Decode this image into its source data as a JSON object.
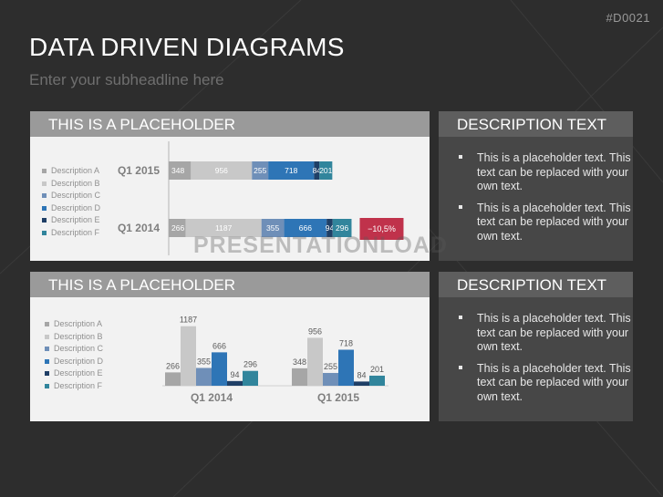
{
  "header": {
    "code": "#D0021",
    "title": "DATA DRIVEN DIAGRAMS",
    "subtitle": "Enter your subheadline here"
  },
  "watermark": "PRESENTATIONLOAD",
  "colors": {
    "series": [
      "#a6a6a6",
      "#c8c8c8",
      "#6f8fb8",
      "#2e75b6",
      "#1f3f66",
      "#31859c"
    ],
    "negative_badge": "#c0324b"
  },
  "panel_top": {
    "title": "THIS IS A PLACEHOLDER"
  },
  "panel_bottom": {
    "title": "THIS IS A PLACEHOLDER"
  },
  "desc_top": {
    "title": "DESCRIPTION TEXT",
    "items": [
      "This is a placeholder text. This text can be replaced with your own text.",
      "This is a placeholder text. This text can be replaced with your own text."
    ]
  },
  "desc_bottom": {
    "title": "DESCRIPTION TEXT",
    "items": [
      "This is a placeholder text. This text can be replaced with your own text.",
      "This is a placeholder text. This text can be replaced with your own text."
    ]
  },
  "chart_data": [
    {
      "type": "bar",
      "orientation": "horizontal-stacked",
      "categories": [
        "Q1 2015",
        "Q1 2014"
      ],
      "series": [
        {
          "name": "Description A",
          "values": [
            348,
            266
          ]
        },
        {
          "name": "Description B",
          "values": [
            956,
            1187
          ]
        },
        {
          "name": "Description C",
          "values": [
            255,
            355
          ]
        },
        {
          "name": "Description D",
          "values": [
            718,
            666
          ]
        },
        {
          "name": "Description E",
          "values": [
            84,
            94
          ]
        },
        {
          "name": "Description F",
          "values": [
            201,
            296
          ]
        }
      ],
      "annotation": "−10,5%",
      "legend": "left",
      "grid": false
    },
    {
      "type": "bar",
      "orientation": "vertical-grouped",
      "categories": [
        "Q1 2014",
        "Q1 2015"
      ],
      "series": [
        {
          "name": "Description A",
          "values": [
            266,
            348
          ]
        },
        {
          "name": "Description B",
          "values": [
            1187,
            956
          ]
        },
        {
          "name": "Description C",
          "values": [
            355,
            255
          ]
        },
        {
          "name": "Description D",
          "values": [
            666,
            718
          ]
        },
        {
          "name": "Description E",
          "values": [
            94,
            84
          ]
        },
        {
          "name": "Description F",
          "values": [
            296,
            201
          ]
        }
      ],
      "legend": "left",
      "grid": false
    }
  ]
}
